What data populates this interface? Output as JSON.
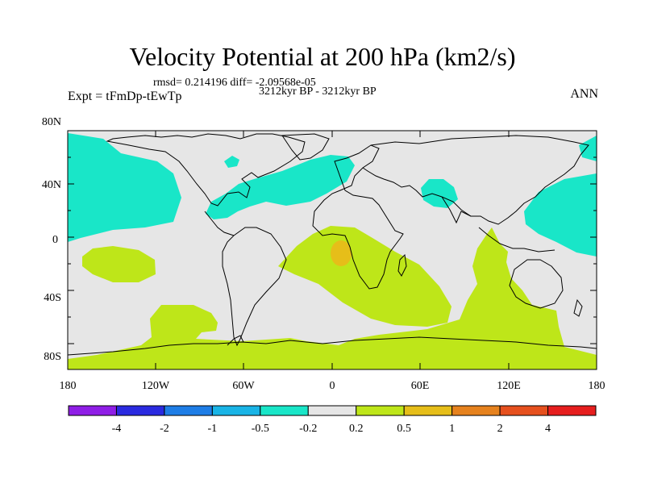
{
  "title": "Velocity Potential at 200 hPa (km2/s)",
  "stats_line": "rmsd= 0.214196 diff= -2.09568e-05",
  "period_line": "3212kyr BP - 3212kyr BP",
  "experiment_label": "Expt = tFmDp-tEwTp",
  "season_label": "ANN",
  "lat_ticks": [
    "80N",
    "40N",
    "0",
    "40S",
    "80S"
  ],
  "lon_ticks": [
    "180",
    "120W",
    "60W",
    "0",
    "60E",
    "120E",
    "180"
  ],
  "colorbar": {
    "colors": [
      "#8f1ee6",
      "#2a2ae0",
      "#1e7de6",
      "#19b4e6",
      "#19e6c8",
      "#e6e6e6",
      "#bee619",
      "#e6be19",
      "#e6821e",
      "#e6501e",
      "#e61e1e"
    ],
    "labels": [
      "-4",
      "-2",
      "-1",
      "-0.5",
      "-0.2",
      "0.2",
      "0.5",
      "1",
      "2",
      "4"
    ]
  }
}
